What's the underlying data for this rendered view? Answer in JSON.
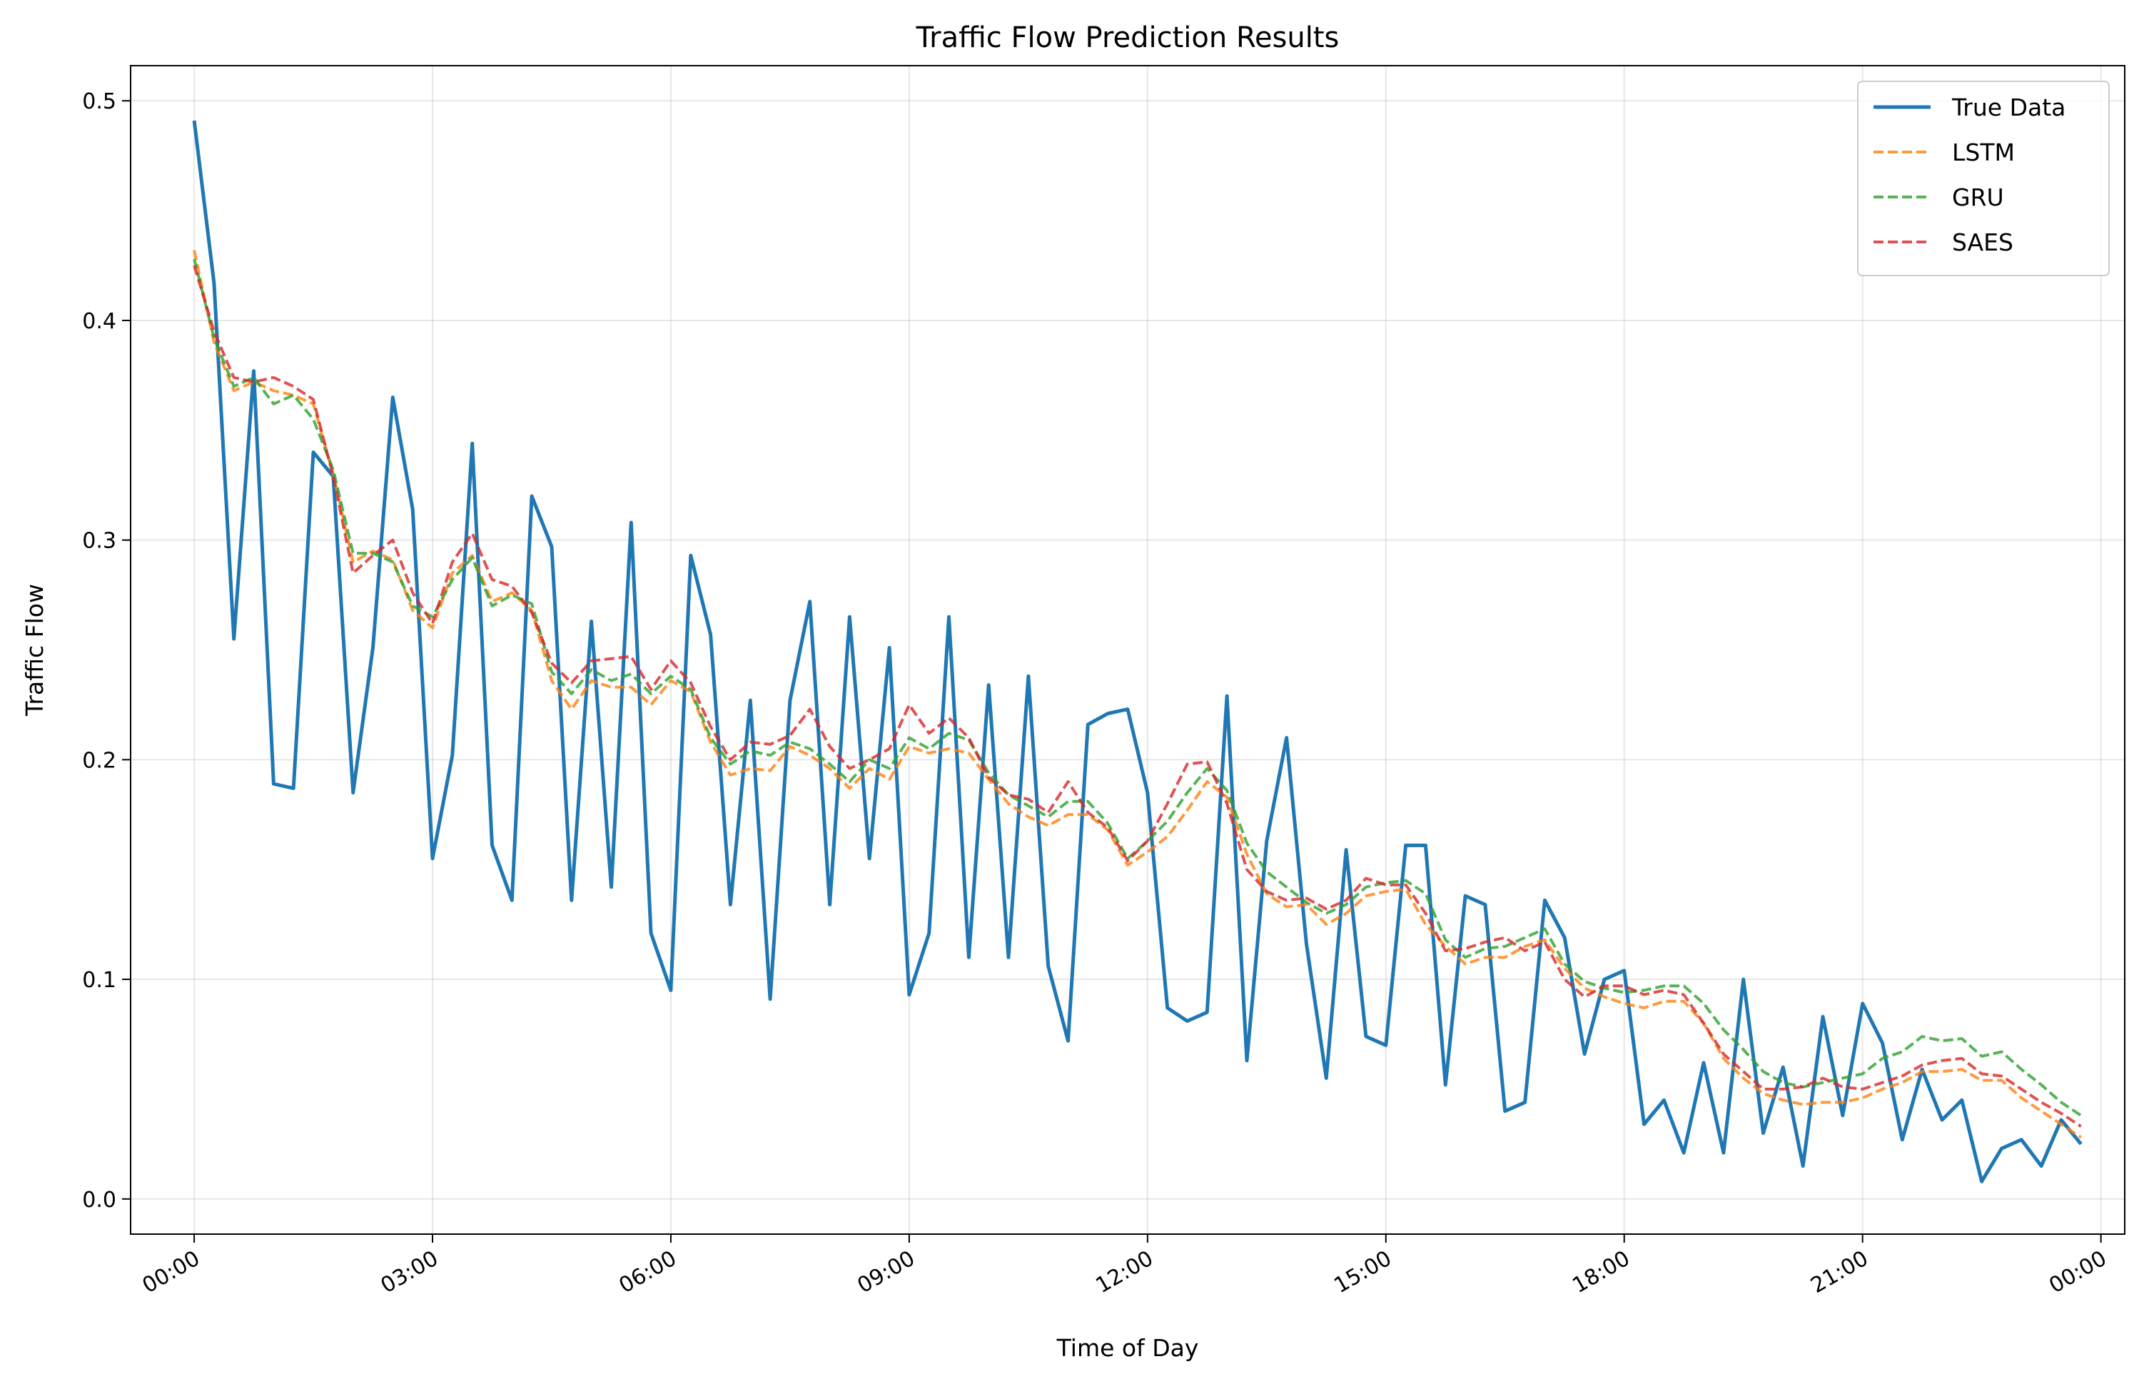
{
  "chart_data": {
    "type": "line",
    "title": "Traffic Flow Prediction Results",
    "xlabel": "Time of Day",
    "ylabel": "Traffic Flow",
    "x_unit": "hours",
    "xlim": [
      -0.8,
      24.3
    ],
    "ylim": [
      -0.016,
      0.516
    ],
    "x_ticks": [
      0,
      3,
      6,
      9,
      12,
      15,
      18,
      21,
      24
    ],
    "x_tick_labels": [
      "00:00",
      "03:00",
      "06:00",
      "09:00",
      "12:00",
      "15:00",
      "18:00",
      "21:00",
      "00:00"
    ],
    "y_ticks": [
      0.0,
      0.1,
      0.2,
      0.3,
      0.4,
      0.5
    ],
    "y_tick_labels": [
      "0.0",
      "0.1",
      "0.2",
      "0.3",
      "0.4",
      "0.5"
    ],
    "grid": true,
    "legend_position": "top-right",
    "step_hours": 0.25,
    "series": [
      {
        "name": "True Data",
        "color": "#1f77b4",
        "style": "solid",
        "values": [
          0.491,
          0.417,
          0.255,
          0.377,
          0.189,
          0.187,
          0.34,
          0.329,
          0.185,
          0.251,
          0.365,
          0.314,
          0.155,
          0.202,
          0.344,
          0.161,
          0.136,
          0.32,
          0.297,
          0.136,
          0.263,
          0.142,
          0.308,
          0.121,
          0.095,
          0.293,
          0.257,
          0.134,
          0.227,
          0.091,
          0.227,
          0.272,
          0.134,
          0.265,
          0.155,
          0.251,
          0.093,
          0.121,
          0.265,
          0.11,
          0.234,
          0.11,
          0.238,
          0.106,
          0.072,
          0.216,
          0.221,
          0.223,
          0.185,
          0.087,
          0.081,
          0.085,
          0.229,
          0.063,
          0.163,
          0.21,
          0.116,
          0.055,
          0.159,
          0.074,
          0.07,
          0.161,
          0.161,
          0.052,
          0.138,
          0.134,
          0.04,
          0.044,
          0.136,
          0.119,
          0.066,
          0.1,
          0.104,
          0.034,
          0.045,
          0.021,
          0.062,
          0.021,
          0.1,
          0.03,
          0.06,
          0.015,
          0.083,
          0.038,
          0.089,
          0.071,
          0.027,
          0.059,
          0.036,
          0.045,
          0.008,
          0.023,
          0.027,
          0.015,
          0.036,
          0.025
        ]
      },
      {
        "name": "LSTM",
        "color": "#ff7f0e",
        "style": "dashed",
        "values": [
          0.432,
          0.39,
          0.368,
          0.372,
          0.368,
          0.366,
          0.362,
          0.33,
          0.29,
          0.295,
          0.291,
          0.268,
          0.26,
          0.285,
          0.293,
          0.272,
          0.276,
          0.268,
          0.236,
          0.223,
          0.236,
          0.233,
          0.233,
          0.225,
          0.236,
          0.231,
          0.208,
          0.193,
          0.196,
          0.195,
          0.206,
          0.202,
          0.196,
          0.187,
          0.196,
          0.191,
          0.206,
          0.203,
          0.205,
          0.203,
          0.191,
          0.18,
          0.174,
          0.17,
          0.175,
          0.175,
          0.168,
          0.152,
          0.158,
          0.165,
          0.177,
          0.19,
          0.183,
          0.157,
          0.139,
          0.133,
          0.134,
          0.125,
          0.13,
          0.138,
          0.14,
          0.141,
          0.125,
          0.115,
          0.107,
          0.11,
          0.11,
          0.115,
          0.118,
          0.105,
          0.096,
          0.092,
          0.089,
          0.087,
          0.09,
          0.09,
          0.08,
          0.064,
          0.055,
          0.048,
          0.045,
          0.043,
          0.044,
          0.044,
          0.046,
          0.05,
          0.053,
          0.058,
          0.058,
          0.059,
          0.054,
          0.054,
          0.046,
          0.04,
          0.034,
          0.028
        ]
      },
      {
        "name": "GRU",
        "color": "#2ca02c",
        "style": "dashed",
        "values": [
          0.428,
          0.392,
          0.37,
          0.374,
          0.362,
          0.366,
          0.355,
          0.332,
          0.294,
          0.294,
          0.29,
          0.27,
          0.265,
          0.282,
          0.292,
          0.27,
          0.275,
          0.271,
          0.24,
          0.23,
          0.241,
          0.236,
          0.239,
          0.23,
          0.238,
          0.232,
          0.21,
          0.198,
          0.204,
          0.202,
          0.208,
          0.205,
          0.198,
          0.19,
          0.2,
          0.196,
          0.21,
          0.205,
          0.212,
          0.209,
          0.194,
          0.184,
          0.179,
          0.174,
          0.181,
          0.181,
          0.171,
          0.155,
          0.163,
          0.172,
          0.185,
          0.196,
          0.186,
          0.162,
          0.149,
          0.142,
          0.135,
          0.13,
          0.134,
          0.142,
          0.144,
          0.145,
          0.139,
          0.118,
          0.11,
          0.114,
          0.115,
          0.119,
          0.123,
          0.107,
          0.099,
          0.096,
          0.094,
          0.095,
          0.097,
          0.097,
          0.089,
          0.077,
          0.068,
          0.058,
          0.053,
          0.051,
          0.053,
          0.055,
          0.057,
          0.064,
          0.067,
          0.074,
          0.072,
          0.073,
          0.065,
          0.067,
          0.059,
          0.052,
          0.044,
          0.038
        ]
      },
      {
        "name": "SAES",
        "color": "#d62728",
        "style": "dashed",
        "values": [
          0.425,
          0.395,
          0.374,
          0.372,
          0.374,
          0.37,
          0.364,
          0.329,
          0.285,
          0.293,
          0.3,
          0.276,
          0.262,
          0.29,
          0.303,
          0.282,
          0.279,
          0.267,
          0.244,
          0.235,
          0.245,
          0.246,
          0.247,
          0.232,
          0.245,
          0.235,
          0.215,
          0.2,
          0.208,
          0.207,
          0.211,
          0.223,
          0.206,
          0.196,
          0.2,
          0.205,
          0.225,
          0.212,
          0.219,
          0.21,
          0.192,
          0.184,
          0.182,
          0.176,
          0.19,
          0.176,
          0.169,
          0.154,
          0.163,
          0.18,
          0.198,
          0.199,
          0.18,
          0.15,
          0.14,
          0.136,
          0.137,
          0.132,
          0.136,
          0.146,
          0.143,
          0.143,
          0.13,
          0.113,
          0.114,
          0.117,
          0.119,
          0.113,
          0.117,
          0.1,
          0.092,
          0.097,
          0.097,
          0.093,
          0.095,
          0.093,
          0.08,
          0.066,
          0.058,
          0.05,
          0.05,
          0.051,
          0.055,
          0.051,
          0.05,
          0.053,
          0.056,
          0.061,
          0.063,
          0.064,
          0.057,
          0.056,
          0.05,
          0.044,
          0.039,
          0.033
        ]
      }
    ]
  }
}
